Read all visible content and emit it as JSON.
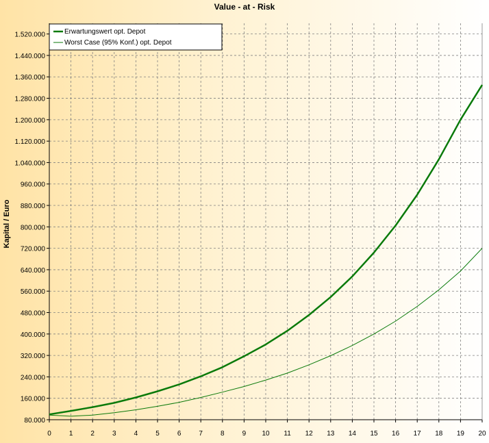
{
  "chart_data": {
    "type": "line",
    "title": "Value - at - Risk",
    "ylabel": "Kapital / Euro",
    "xlabel": "",
    "xlim": [
      0,
      20
    ],
    "ylim": [
      80000,
      1560000
    ],
    "grid": true,
    "legend_position": "top-left",
    "x_ticks": [
      0,
      1,
      2,
      3,
      4,
      5,
      6,
      7,
      8,
      9,
      10,
      11,
      12,
      13,
      14,
      15,
      16,
      17,
      18,
      19,
      20
    ],
    "x_tick_labels": [
      "0",
      "1",
      "2",
      "3",
      "4",
      "5",
      "6",
      "7",
      "8",
      "9",
      "10",
      "11",
      "12",
      "13",
      "14",
      "15",
      "16",
      "17",
      "18",
      "19",
      "20"
    ],
    "y_ticks": [
      80000,
      160000,
      240000,
      320000,
      400000,
      480000,
      560000,
      640000,
      720000,
      800000,
      880000,
      960000,
      1040000,
      1120000,
      1200000,
      1280000,
      1360000,
      1440000,
      1520000
    ],
    "y_tick_labels": [
      "80.000",
      "160.000",
      "240.000",
      "320.000",
      "400.000",
      "480.000",
      "560.000",
      "640.000",
      "720.000",
      "800.000",
      "880.000",
      "960.000",
      "1.040.000",
      "1.120.000",
      "1.200.000",
      "1.280.000",
      "1.360.000",
      "1.440.000",
      "1.520.000"
    ],
    "x": [
      0,
      1,
      2,
      3,
      4,
      5,
      6,
      7,
      8,
      9,
      10,
      11,
      12,
      13,
      14,
      15,
      16,
      17,
      18,
      19,
      20
    ],
    "series": [
      {
        "name": "Erwartungswert opt. Depot",
        "color": "#0a7a0a",
        "values": [
          100000,
          113000,
          127000,
          143000,
          163000,
          186000,
          212000,
          242000,
          276000,
          317000,
          361000,
          412000,
          471000,
          538000,
          615000,
          704000,
          805000,
          920000,
          1052000,
          1200000,
          1330000
        ]
      },
      {
        "name": "Worst Case (95% Konf.) opt. Depot",
        "color": "#0a7a0a",
        "values": [
          97000,
          93000,
          97000,
          106000,
          117000,
          130000,
          145000,
          163000,
          183000,
          204000,
          228000,
          254000,
          285000,
          319000,
          357000,
          400000,
          448000,
          503000,
          565000,
          635000,
          720000
        ]
      }
    ]
  }
}
